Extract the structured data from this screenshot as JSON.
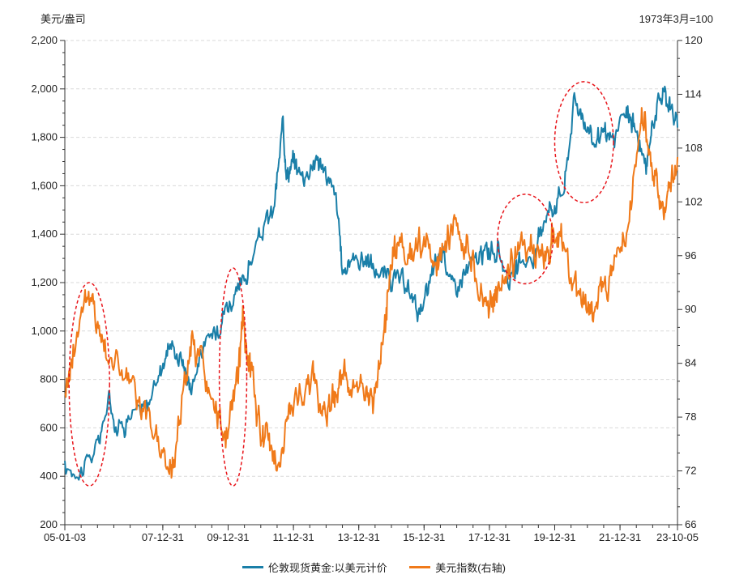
{
  "chart_data": {
    "type": "line",
    "left_axis_unit": "美元/盎司",
    "right_axis_unit": "1973年3月=100",
    "x_tick_labels": [
      "05-01-03",
      "07-12-31",
      "09-12-31",
      "11-12-31",
      "13-12-31",
      "15-12-31",
      "17-12-31",
      "19-12-31",
      "21-12-31",
      "23-10-05"
    ],
    "x_tick_years": [
      2005.0,
      2008.0,
      2010.0,
      2012.0,
      2014.0,
      2016.0,
      2018.0,
      2020.0,
      2022.0,
      2023.76
    ],
    "x_range": [
      2005.0,
      2023.76
    ],
    "y_left": {
      "min": 200,
      "max": 2200,
      "step": 200,
      "tick_labels": [
        "200",
        "400",
        "600",
        "800",
        "1,000",
        "1,200",
        "1,400",
        "1,600",
        "1,800",
        "2,000",
        "2,200"
      ]
    },
    "y_right": {
      "min": 66,
      "max": 120,
      "step": 6,
      "tick_labels": [
        "66",
        "72",
        "78",
        "84",
        "90",
        "96",
        "102",
        "108",
        "114",
        "120"
      ]
    },
    "grid": true,
    "series": [
      {
        "name": "伦敦现货黄金:以美元计价",
        "axis": "left",
        "color": "#1a7fa8",
        "x": [
          2005.0,
          2005.5,
          2006.0,
          2006.35,
          2006.6,
          2007.0,
          2007.5,
          2007.9,
          2008.2,
          2008.6,
          2008.85,
          2009.2,
          2009.6,
          2009.9,
          2010.3,
          2010.6,
          2011.0,
          2011.4,
          2011.68,
          2011.8,
          2012.0,
          2012.3,
          2012.7,
          2012.95,
          2013.3,
          2013.5,
          2013.8,
          2014.2,
          2014.5,
          2014.9,
          2015.3,
          2015.6,
          2015.95,
          2016.3,
          2016.6,
          2016.9,
          2017.3,
          2017.7,
          2018.0,
          2018.3,
          2018.7,
          2019.0,
          2019.4,
          2019.7,
          2019.95,
          2020.3,
          2020.6,
          2020.9,
          2021.2,
          2021.5,
          2021.8,
          2022.2,
          2022.45,
          2022.8,
          2023.0,
          2023.3,
          2023.5,
          2023.76
        ],
        "values": [
          425,
          430,
          520,
          720,
          600,
          650,
          680,
          830,
          950,
          880,
          770,
          920,
          1000,
          1100,
          1150,
          1250,
          1400,
          1500,
          1850,
          1650,
          1700,
          1640,
          1720,
          1660,
          1550,
          1250,
          1300,
          1300,
          1250,
          1220,
          1200,
          1150,
          1070,
          1260,
          1330,
          1170,
          1250,
          1300,
          1340,
          1320,
          1200,
          1290,
          1300,
          1490,
          1520,
          1600,
          1960,
          1880,
          1780,
          1800,
          1790,
          1900,
          1850,
          1650,
          1880,
          1990,
          1950,
          1840
        ]
      },
      {
        "name": "美元指数(右轴)",
        "axis": "right",
        "color": "#f07a1a",
        "x": [
          2005.0,
          2005.2,
          2005.6,
          2005.9,
          2006.2,
          2006.6,
          2007.0,
          2007.4,
          2007.8,
          2008.2,
          2008.35,
          2008.6,
          2008.9,
          2009.2,
          2009.6,
          2009.95,
          2010.2,
          2010.45,
          2010.7,
          2011.0,
          2011.3,
          2011.6,
          2011.9,
          2012.3,
          2012.6,
          2012.9,
          2013.2,
          2013.5,
          2013.8,
          2014.2,
          2014.5,
          2014.8,
          2015.0,
          2015.2,
          2015.6,
          2015.95,
          2016.3,
          2016.6,
          2016.95,
          2017.3,
          2017.7,
          2018.0,
          2018.2,
          2018.6,
          2018.9,
          2019.3,
          2019.7,
          2019.95,
          2020.2,
          2020.5,
          2020.9,
          2021.2,
          2021.5,
          2021.8,
          2022.2,
          2022.6,
          2022.75,
          2023.0,
          2023.3,
          2023.5,
          2023.76
        ],
        "values": [
          81,
          84,
          92,
          90,
          86,
          84,
          82,
          78,
          76,
          72,
          73,
          81,
          86,
          84,
          78,
          76,
          80,
          88,
          83,
          76,
          75,
          73,
          79,
          81,
          82,
          79,
          80,
          83,
          81,
          80,
          81,
          88,
          95,
          98,
          96,
          98,
          94,
          96,
          100,
          97,
          92,
          90,
          92,
          95,
          97,
          97,
          96,
          98,
          99,
          93,
          91,
          90,
          92,
          96,
          99,
          110,
          111,
          104,
          102,
          103,
          107
        ]
      }
    ]
  }
}
